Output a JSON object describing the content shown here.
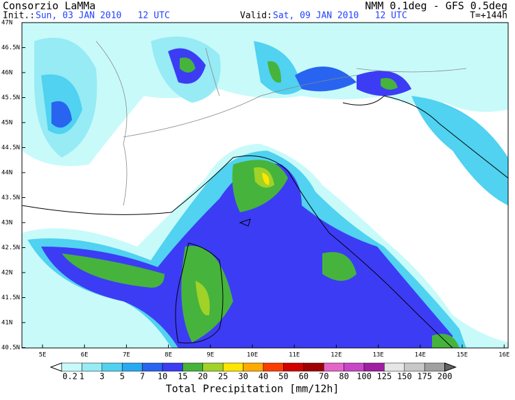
{
  "header": {
    "agency": "Consorzio LaMMa",
    "model": "NMM 0.1deg - GFS 0.5deg",
    "init_label": "Init.:",
    "init_time": "Sun, 03 JAN 2010   12 UTC",
    "valid_label": "Valid:",
    "valid_time": "Sat, 09 JAN 2010   12 UTC",
    "lead": "T=+144h"
  },
  "map": {
    "lat_labels": [
      "47N",
      "46.5N",
      "46N",
      "45.5N",
      "45N",
      "44.5N",
      "44N",
      "43.5N",
      "43N",
      "42.5N",
      "42N",
      "41.5N",
      "41N",
      "40.5N"
    ],
    "lon_labels": [
      "5E",
      "6E",
      "7E",
      "8E",
      "9E",
      "10E",
      "11E",
      "12E",
      "13E",
      "14E",
      "15E",
      "16E"
    ]
  },
  "legend": {
    "title": "Total Precipitation [mm/12h]",
    "labels": [
      "0.2",
      "1",
      "3",
      "5",
      "7",
      "10",
      "15",
      "20",
      "25",
      "30",
      "40",
      "50",
      "60",
      "70",
      "80",
      "100",
      "125",
      "150",
      "175",
      "200"
    ],
    "colors": [
      "#ffffff",
      "#c8fafa",
      "#96ebf5",
      "#50d2f0",
      "#28aaf0",
      "#2864f0",
      "#3c3cf5",
      "#46b43c",
      "#a0d228",
      "#ffe600",
      "#ffaa00",
      "#ff3c00",
      "#d20000",
      "#a00000",
      "#e664c8",
      "#c846c8",
      "#a01ea0",
      "#e6e6e6",
      "#c8c8c8",
      "#a0a0a0",
      "#646464"
    ]
  }
}
